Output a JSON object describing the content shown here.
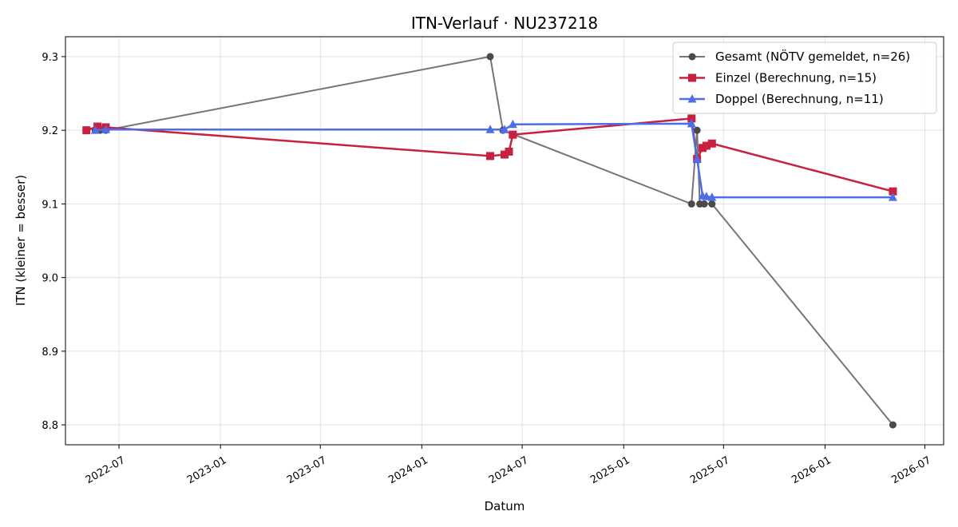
{
  "chart_data": {
    "type": "line",
    "title": "ITN-Verlauf · NU237218",
    "xlabel": "Datum",
    "ylabel": "ITN  (kleiner = besser)",
    "x_type": "date",
    "xlim": [
      "2022-03-26",
      "2026-08-04"
    ],
    "ylim": [
      8.773,
      9.327
    ],
    "x_ticks": [
      "2022-07-01",
      "2023-01-01",
      "2023-07-01",
      "2024-01-01",
      "2024-07-01",
      "2025-01-01",
      "2025-07-01",
      "2026-01-01",
      "2026-07-01"
    ],
    "x_tick_labels": [
      "2022-07",
      "2023-01",
      "2023-07",
      "2024-01",
      "2024-07",
      "2025-01",
      "2025-07",
      "2026-01",
      "2026-07"
    ],
    "y_ticks": [
      8.8,
      8.9,
      9.0,
      9.1,
      9.2,
      9.3
    ],
    "y_tick_labels": [
      "8.8",
      "8.9",
      "9.0",
      "9.1",
      "9.2",
      "9.3"
    ],
    "grid": true,
    "legend_position": "top-right",
    "series": [
      {
        "name": "Gesamt (NÖTV gemeldet, n=26)",
        "color": "#757575",
        "marker_color": "#4a4a4a",
        "marker": "circle",
        "points": [
          {
            "x": "2022-05-19",
            "y": 9.2
          },
          {
            "x": "2022-05-28",
            "y": 9.2
          },
          {
            "x": "2022-06-07",
            "y": 9.2
          },
          {
            "x": "2024-05-04",
            "y": 9.3
          },
          {
            "x": "2024-05-27",
            "y": 9.2
          },
          {
            "x": "2025-05-04",
            "y": 9.1
          },
          {
            "x": "2025-05-14",
            "y": 9.2
          },
          {
            "x": "2025-05-19",
            "y": 9.1
          },
          {
            "x": "2025-05-27",
            "y": 9.1
          },
          {
            "x": "2025-06-10",
            "y": 9.1
          },
          {
            "x": "2026-05-04",
            "y": 8.8
          }
        ]
      },
      {
        "name": "Einzel (Berechnung, n=15)",
        "color": "#c8203f",
        "marker_color": "#c8203f",
        "marker": "square",
        "points": [
          {
            "x": "2022-05-03",
            "y": 9.2
          },
          {
            "x": "2022-05-23",
            "y": 9.205
          },
          {
            "x": "2022-06-07",
            "y": 9.204
          },
          {
            "x": "2024-05-04",
            "y": 9.165
          },
          {
            "x": "2024-05-30",
            "y": 9.167
          },
          {
            "x": "2024-06-07",
            "y": 9.171
          },
          {
            "x": "2024-06-14",
            "y": 9.194
          },
          {
            "x": "2025-05-04",
            "y": 9.216
          },
          {
            "x": "2025-05-14",
            "y": 9.161
          },
          {
            "x": "2025-05-24",
            "y": 9.176
          },
          {
            "x": "2025-05-31",
            "y": 9.179
          },
          {
            "x": "2025-06-10",
            "y": 9.182
          },
          {
            "x": "2026-05-04",
            "y": 9.117
          }
        ]
      },
      {
        "name": "Doppel (Berechnung, n=11)",
        "color": "#4d6ee8",
        "marker_color": "#4d6ee8",
        "marker": "triangle",
        "points": [
          {
            "x": "2022-05-19",
            "y": 9.2
          },
          {
            "x": "2022-06-07",
            "y": 9.201
          },
          {
            "x": "2024-05-04",
            "y": 9.201
          },
          {
            "x": "2024-05-30",
            "y": 9.201
          },
          {
            "x": "2024-06-14",
            "y": 9.208
          },
          {
            "x": "2025-05-04",
            "y": 9.209
          },
          {
            "x": "2025-05-14",
            "y": 9.161
          },
          {
            "x": "2025-05-24",
            "y": 9.111
          },
          {
            "x": "2025-05-31",
            "y": 9.11
          },
          {
            "x": "2025-06-10",
            "y": 9.109
          },
          {
            "x": "2026-05-04",
            "y": 9.109
          }
        ]
      }
    ]
  }
}
